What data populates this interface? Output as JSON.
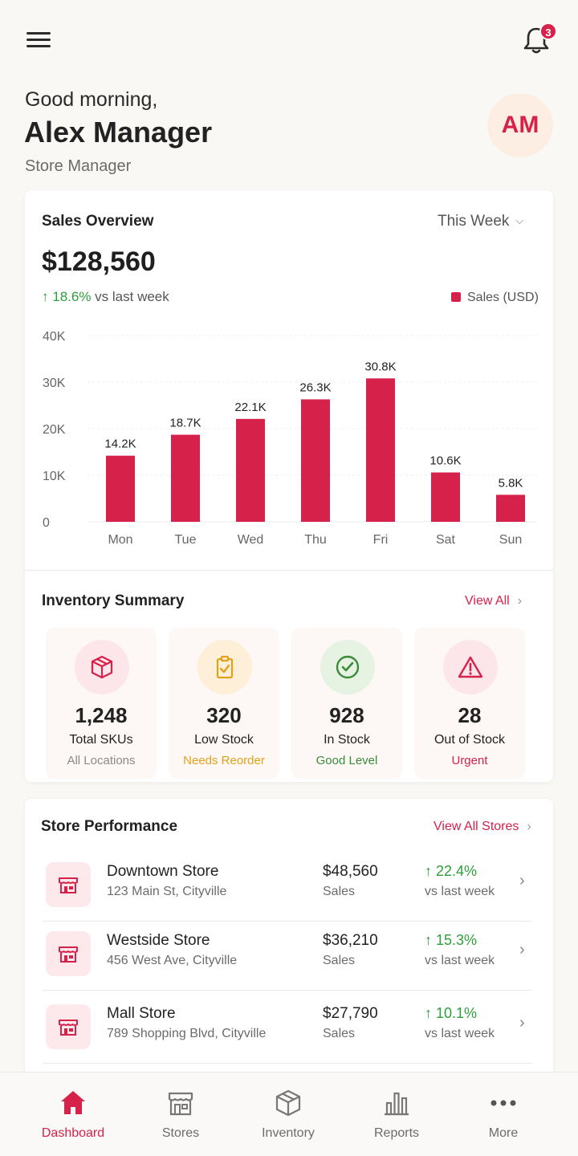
{
  "header": {
    "greeting": "Good morning,",
    "name": "Alex Manager",
    "role": "Store Manager",
    "avatar_initials": "AM",
    "notification_count": "3"
  },
  "sales": {
    "title": "Sales Overview",
    "period": "This Week",
    "total": "$128,560",
    "growth_value": "18.6%",
    "growth_text": "vs last week",
    "legend": "Sales (USD)"
  },
  "chart_data": {
    "type": "bar",
    "categories": [
      "Mon",
      "Tue",
      "Wed",
      "Thu",
      "Fri",
      "Sat",
      "Sun"
    ],
    "values": [
      14200,
      18700,
      22100,
      26300,
      30800,
      10600,
      5800
    ],
    "value_labels": [
      "14.2K",
      "18.7K",
      "22.1K",
      "26.3K",
      "30.8K",
      "10.6K",
      "5.8K"
    ],
    "series": [
      {
        "name": "Sales (USD)"
      }
    ],
    "ylim": [
      0,
      40000
    ],
    "yticks": [
      "0",
      "10K",
      "20K",
      "30K",
      "40K"
    ],
    "grid": true,
    "legend": "top-right",
    "color": "#d6214a"
  },
  "inventory": {
    "title": "Inventory Summary",
    "view_all": "View All",
    "tiles": [
      {
        "value": "1,248",
        "label": "Total SKUs",
        "sub": "All Locations",
        "icon": "box-icon",
        "bg": "#fde6ea",
        "color": "#d6214a",
        "sub_color": "#8a8a8a"
      },
      {
        "value": "320",
        "label": "Low Stock",
        "sub": "Needs Reorder",
        "icon": "clipboard-check-icon",
        "bg": "#fdefd8",
        "color": "#e0a21a",
        "sub_color": "#e0a21a"
      },
      {
        "value": "928",
        "label": "In Stock",
        "sub": "Good Level",
        "icon": "check-circle-icon",
        "bg": "#e6f2e2",
        "color": "#3a8a3a",
        "sub_color": "#3a8a3a"
      },
      {
        "value": "28",
        "label": "Out of Stock",
        "sub": "Urgent",
        "icon": "warning-icon",
        "bg": "#fde6ea",
        "color": "#d6214a",
        "sub_color": "#d6214a"
      }
    ]
  },
  "stores": {
    "title": "Store Performance",
    "view_all": "View All Stores",
    "rows": [
      {
        "name": "Downtown Store",
        "address": "123 Main St, Cityville",
        "amount": "$48,560",
        "amount_label": "Sales",
        "change": "22.4%",
        "change_label": "vs last week"
      },
      {
        "name": "Westside Store",
        "address": "456 West Ave, Cityville",
        "amount": "$36,210",
        "amount_label": "Sales",
        "change": "15.3%",
        "change_label": "vs last week"
      },
      {
        "name": "Mall Store",
        "address": "789 Shopping Blvd, Cityville",
        "amount": "$27,790",
        "amount_label": "Sales",
        "change": "10.1%",
        "change_label": "vs last week"
      }
    ]
  },
  "nav": {
    "items": [
      {
        "label": "Dashboard",
        "icon": "home-icon",
        "active": true
      },
      {
        "label": "Stores",
        "icon": "store-icon",
        "active": false
      },
      {
        "label": "Inventory",
        "icon": "box-icon",
        "active": false
      },
      {
        "label": "Reports",
        "icon": "bar-chart-icon",
        "active": false
      },
      {
        "label": "More",
        "icon": "more-icon",
        "active": false
      }
    ]
  }
}
